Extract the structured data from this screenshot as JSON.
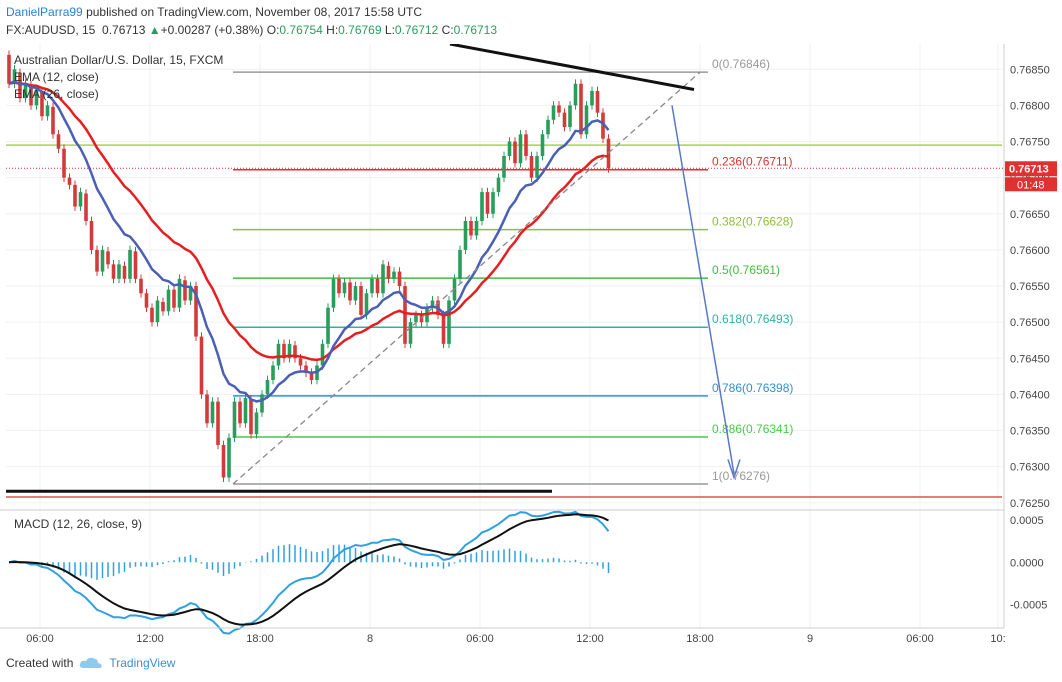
{
  "header": {
    "user": "DanielParra99",
    "published": "published on TradingView.com, November 08, 2017 15:58 UTC",
    "symbol": "FX:AUDUSD, 15",
    "last": "0.76713",
    "change_arrow": "▲",
    "change": "+0.00287 (+0.38%)",
    "o_label": "O:",
    "o": "0.76754",
    "h_label": "H:",
    "h": "0.76769",
    "l_label": "L:",
    "l": "0.76712",
    "c_label": "C:",
    "c": "0.76713"
  },
  "footer": {
    "created_with": "Created with",
    "brand": "TradingView",
    "logo_icon": "tradingview-cloud-icon"
  },
  "colors": {
    "up": "#2a9d5c",
    "down": "#d33b3b",
    "ema12": "#4a5fb5",
    "ema26": "#e51f1f",
    "macd": "#2fa1e0",
    "signal": "#111111",
    "hist": "#2fa1e0",
    "grid": "#eef1f5"
  },
  "chart_data": {
    "type": "candlestick",
    "title": "Australian Dollar/U.S. Dollar, 15, FXCM",
    "indicators": [
      "EMA (12, close)",
      "EMA (26, close)"
    ],
    "y_ticks": [
      "0.76850",
      "0.76800",
      "0.76750",
      "0.76700",
      "0.76650",
      "0.76600",
      "0.76550",
      "0.76500",
      "0.76450",
      "0.76400",
      "0.76350",
      "0.76300",
      "0.76250"
    ],
    "ylim": [
      0.7624,
      0.76885
    ],
    "x_ticks": [
      "06:00",
      "12:00",
      "18:00",
      "8",
      "06:00",
      "12:00",
      "18:00",
      "9",
      "06:00",
      "10:"
    ],
    "price_tag": "0.76713",
    "countdown": "01:48",
    "fib_levels": [
      {
        "label": "0(0.76846)",
        "value": 0.76846,
        "color": "#999999"
      },
      {
        "label": "0.236(0.76711)",
        "value": 0.76711,
        "color": "#e03030"
      },
      {
        "label": "0.382(0.76628)",
        "value": 0.76628,
        "color": "#8fbf3a"
      },
      {
        "label": "0.5(0.76561)",
        "value": 0.76561,
        "color": "#3cc03c"
      },
      {
        "label": "0.618(0.76493)",
        "value": 0.76493,
        "color": "#2ab5a0"
      },
      {
        "label": "0.786(0.76398)",
        "value": 0.76398,
        "color": "#3390d0"
      },
      {
        "label": "0.886(0.76341)",
        "value": 0.76341,
        "color": "#44cc44"
      },
      {
        "label": "1(0.76276)",
        "value": 0.76276,
        "color": "#999999"
      }
    ],
    "horizontal_lines": [
      {
        "value": 0.76745,
        "color": "#a8d24a"
      },
      {
        "value": 0.76258,
        "color": "#e05050"
      },
      {
        "value": 0.76266,
        "color": "#111111"
      }
    ],
    "candles": [
      [
        0.7687,
        0.7683
      ],
      [
        0.7683,
        0.7685
      ],
      [
        0.76845,
        0.7681
      ],
      [
        0.7681,
        0.7683
      ],
      [
        0.76828,
        0.768
      ],
      [
        0.768,
        0.76822
      ],
      [
        0.7682,
        0.76785
      ],
      [
        0.76785,
        0.768
      ],
      [
        0.76798,
        0.7676
      ],
      [
        0.7676,
        0.7674
      ],
      [
        0.7674,
        0.767
      ],
      [
        0.767,
        0.7669
      ],
      [
        0.7669,
        0.7666
      ],
      [
        0.7666,
        0.7668
      ],
      [
        0.76678,
        0.7664
      ],
      [
        0.7664,
        0.766
      ],
      [
        0.766,
        0.7657
      ],
      [
        0.7657,
        0.766
      ],
      [
        0.76598,
        0.7658
      ],
      [
        0.7658,
        0.7656
      ],
      [
        0.7656,
        0.7658
      ],
      [
        0.76578,
        0.7656
      ],
      [
        0.7656,
        0.766
      ],
      [
        0.76598,
        0.7656
      ],
      [
        0.7656,
        0.7654
      ],
      [
        0.7654,
        0.7652
      ],
      [
        0.7652,
        0.765
      ],
      [
        0.765,
        0.7653
      ],
      [
        0.76528,
        0.76515
      ],
      [
        0.76515,
        0.76545
      ],
      [
        0.76545,
        0.7652
      ],
      [
        0.7652,
        0.7656
      ],
      [
        0.76558,
        0.7653
      ],
      [
        0.7653,
        0.7655
      ],
      [
        0.7655,
        0.7648
      ],
      [
        0.7648,
        0.764
      ],
      [
        0.764,
        0.7636
      ],
      [
        0.7636,
        0.7639
      ],
      [
        0.7639,
        0.7633
      ],
      [
        0.7633,
        0.76285
      ],
      [
        0.76285,
        0.7634
      ],
      [
        0.7634,
        0.7639
      ],
      [
        0.7639,
        0.7636
      ],
      [
        0.7636,
        0.76395
      ],
      [
        0.76393,
        0.76345
      ],
      [
        0.76345,
        0.76375
      ],
      [
        0.76375,
        0.764
      ],
      [
        0.764,
        0.7642
      ],
      [
        0.7642,
        0.7644
      ],
      [
        0.7644,
        0.7647
      ],
      [
        0.7647,
        0.7645
      ],
      [
        0.7645,
        0.7647
      ],
      [
        0.76468,
        0.7645
      ],
      [
        0.7645,
        0.7644
      ],
      [
        0.7644,
        0.7643
      ],
      [
        0.7643,
        0.7642
      ],
      [
        0.7642,
        0.7644
      ],
      [
        0.7644,
        0.7647
      ],
      [
        0.7647,
        0.7652
      ],
      [
        0.7652,
        0.7656
      ],
      [
        0.7656,
        0.7654
      ],
      [
        0.7654,
        0.76555
      ],
      [
        0.76555,
        0.7653
      ],
      [
        0.7653,
        0.7655
      ],
      [
        0.7655,
        0.7651
      ],
      [
        0.7651,
        0.7654
      ],
      [
        0.7654,
        0.7656
      ],
      [
        0.7656,
        0.7654
      ],
      [
        0.7654,
        0.7658
      ],
      [
        0.76578,
        0.7656
      ],
      [
        0.7656,
        0.7657
      ],
      [
        0.7657,
        0.7655
      ],
      [
        0.7655,
        0.7647
      ],
      [
        0.7647,
        0.765
      ],
      [
        0.765,
        0.7651
      ],
      [
        0.7651,
        0.765
      ],
      [
        0.765,
        0.7652
      ],
      [
        0.7652,
        0.7653
      ],
      [
        0.7653,
        0.7651
      ],
      [
        0.7651,
        0.7647
      ],
      [
        0.7647,
        0.7653
      ],
      [
        0.7653,
        0.7656
      ],
      [
        0.7656,
        0.766
      ],
      [
        0.766,
        0.7664
      ],
      [
        0.7664,
        0.7662
      ],
      [
        0.7662,
        0.7664
      ],
      [
        0.7664,
        0.7668
      ],
      [
        0.7668,
        0.7665
      ],
      [
        0.7665,
        0.7668
      ],
      [
        0.7668,
        0.767
      ],
      [
        0.767,
        0.7673
      ],
      [
        0.7673,
        0.7675
      ],
      [
        0.7675,
        0.7672
      ],
      [
        0.7672,
        0.7676
      ],
      [
        0.7676,
        0.7673
      ],
      [
        0.7673,
        0.767
      ],
      [
        0.767,
        0.7673
      ],
      [
        0.7673,
        0.7676
      ],
      [
        0.7676,
        0.7678
      ],
      [
        0.7678,
        0.768
      ],
      [
        0.768,
        0.7679
      ],
      [
        0.7679,
        0.7677
      ],
      [
        0.7677,
        0.768
      ],
      [
        0.768,
        0.7683
      ],
      [
        0.7683,
        0.7676
      ],
      [
        0.7676,
        0.768
      ],
      [
        0.768,
        0.7682
      ],
      [
        0.7682,
        0.7679
      ],
      [
        0.7679,
        0.76754
      ],
      [
        0.76754,
        0.76713
      ]
    ],
    "macd_panel": {
      "title": "MACD (12, 26, close, 9)",
      "y_ticks": [
        "0.0005",
        "0.0000",
        "-0.0005"
      ],
      "ylim": [
        -0.00078,
        0.00062
      ]
    }
  }
}
